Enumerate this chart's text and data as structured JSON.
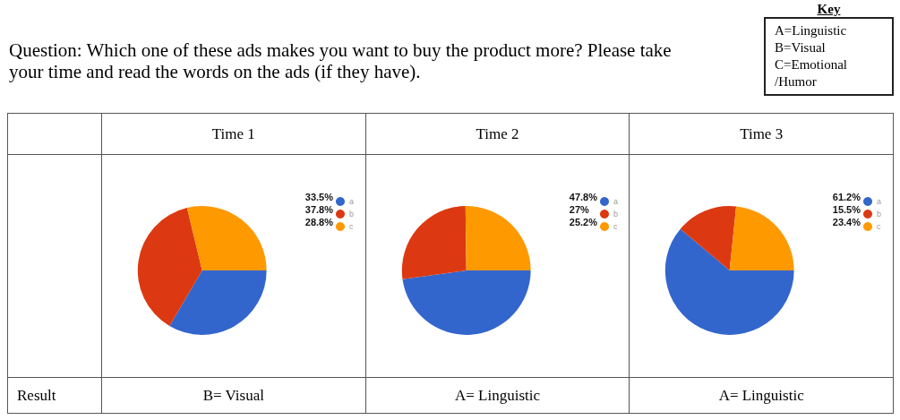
{
  "chart_data": [
    {
      "type": "pie",
      "title": "Time 1",
      "categories": [
        "a",
        "b",
        "c"
      ],
      "values": [
        33.5,
        37.8,
        28.8
      ],
      "value_labels": [
        "33.5%",
        "37.8%",
        "28.8%"
      ],
      "colors": [
        "#3366cc",
        "#dc3912",
        "#ff9900"
      ],
      "legend": "right",
      "annotations": [
        "Question: Which one of these ads makes you want to buy the product more? Please take your time and read the words on the ads (if they have).",
        "Key",
        "A=Linguistic\nB=Visual\nC=Emotional\n/Humor",
        "Result",
        "B= Visual"
      ]
    },
    {
      "type": "pie",
      "title": "Time 2",
      "categories": [
        "a",
        "b",
        "c"
      ],
      "values": [
        47.8,
        27,
        25.2
      ],
      "value_labels": [
        "47.8%",
        "27%",
        "25.2%"
      ],
      "colors": [
        "#3366cc",
        "#dc3912",
        "#ff9900"
      ],
      "legend": "right",
      "annotations": [
        "A= Linguistic"
      ]
    },
    {
      "type": "pie",
      "title": "Time 3",
      "categories": [
        "a",
        "b",
        "c"
      ],
      "values": [
        61.2,
        15.5,
        23.4
      ],
      "value_labels": [
        "61.2%",
        "15.5%",
        "23.4%"
      ],
      "colors": [
        "#3366cc",
        "#dc3912",
        "#ff9900"
      ],
      "legend": "right",
      "annotations": [
        "A= Linguistic"
      ]
    }
  ]
}
